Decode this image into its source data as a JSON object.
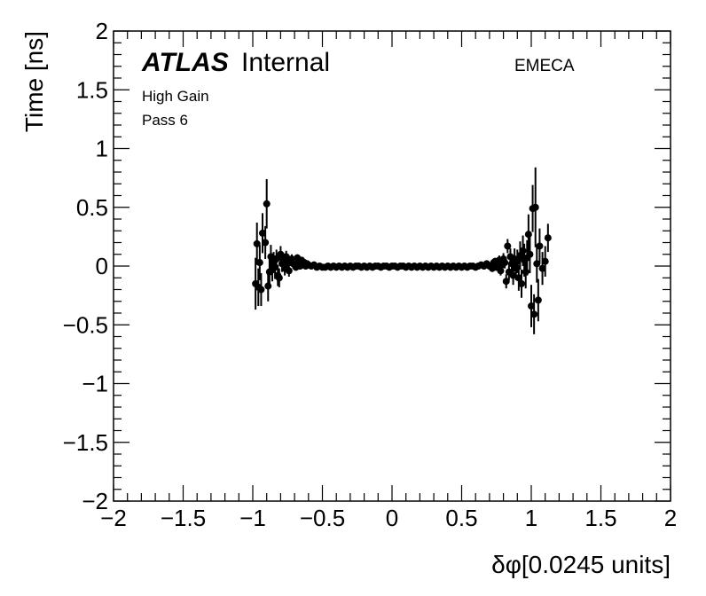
{
  "labels": {
    "atlas": "ATLAS",
    "internal": "Internal",
    "gain": "High Gain",
    "pass": "Pass 6",
    "region": "EMECA"
  },
  "chart_data": {
    "type": "scatter",
    "xlabel": "δφ[0.0245 units]",
    "ylabel": "Time [ns]",
    "xlim": [
      -2,
      2
    ],
    "ylim": [
      -2,
      2
    ],
    "x_ticks": [
      "−2",
      "−1.5",
      "−1",
      "−0.5",
      "0",
      "0.5",
      "1",
      "1.5",
      "2"
    ],
    "y_ticks": [
      "−2",
      "−1.5",
      "−1",
      "−0.5",
      "0",
      "0.5",
      "1",
      "1.5",
      "2"
    ],
    "marker_color": "#000000",
    "series": [
      {
        "points": [
          {
            "x": -0.98,
            "y": -0.15,
            "err": 0.22
          },
          {
            "x": -0.97,
            "y": 0.19,
            "err": 0.18
          },
          {
            "x": -0.96,
            "y": -0.18,
            "err": 0.16
          },
          {
            "x": -0.95,
            "y": 0.03,
            "err": 0.15
          },
          {
            "x": -0.94,
            "y": -0.2,
            "err": 0.14
          },
          {
            "x": -0.93,
            "y": 0.28,
            "err": 0.17
          },
          {
            "x": -0.91,
            "y": 0.2,
            "err": 0.14
          },
          {
            "x": -0.9,
            "y": 0.53,
            "err": 0.21
          },
          {
            "x": -0.89,
            "y": -0.17,
            "err": 0.13
          },
          {
            "x": -0.88,
            "y": -0.05,
            "err": 0.12
          },
          {
            "x": -0.87,
            "y": 0.08,
            "err": 0.1
          },
          {
            "x": -0.86,
            "y": -0.02,
            "err": 0.11
          },
          {
            "x": -0.85,
            "y": 0.03,
            "err": 0.09
          },
          {
            "x": -0.84,
            "y": -0.01,
            "err": 0.1
          },
          {
            "x": -0.83,
            "y": 0.06,
            "err": 0.08
          },
          {
            "x": -0.82,
            "y": -0.08,
            "err": 0.09
          },
          {
            "x": -0.81,
            "y": -0.1,
            "err": 0.08
          },
          {
            "x": -0.8,
            "y": 0.1,
            "err": 0.07
          },
          {
            "x": -0.79,
            "y": 0.02,
            "err": 0.07
          },
          {
            "x": -0.78,
            "y": 0.05,
            "err": 0.06
          },
          {
            "x": -0.77,
            "y": -0.02,
            "err": 0.06
          },
          {
            "x": -0.76,
            "y": 0.08,
            "err": 0.05
          },
          {
            "x": -0.75,
            "y": 0.03,
            "err": 0.05
          },
          {
            "x": -0.74,
            "y": -0.04,
            "err": 0.05
          },
          {
            "x": -0.73,
            "y": 0.04,
            "err": 0.04
          },
          {
            "x": -0.72,
            "y": 0.06,
            "err": 0.04
          },
          {
            "x": -0.71,
            "y": 0.02,
            "err": 0.04
          },
          {
            "x": -0.7,
            "y": 0.01,
            "err": 0.03
          },
          {
            "x": -0.69,
            "y": -0.01,
            "err": 0.03
          },
          {
            "x": -0.68,
            "y": 0.07,
            "err": 0.03
          },
          {
            "x": -0.67,
            "y": 0.04,
            "err": 0.03
          },
          {
            "x": -0.66,
            "y": 0.0,
            "err": 0.03
          },
          {
            "x": -0.65,
            "y": 0.05,
            "err": 0.02
          },
          {
            "x": -0.64,
            "y": 0.01,
            "err": 0.02
          },
          {
            "x": -0.63,
            "y": 0.03,
            "err": 0.02
          },
          {
            "x": -0.62,
            "y": 0.0,
            "err": 0.02
          },
          {
            "x": -0.61,
            "y": 0.02,
            "err": 0.02
          },
          {
            "x": -0.6,
            "y": 0.01,
            "err": 0.02
          },
          {
            "x": -0.58,
            "y": 0.0,
            "err": 0.02
          },
          {
            "x": -0.56,
            "y": 0.01,
            "err": 0.01
          },
          {
            "x": -0.54,
            "y": -0.01,
            "err": 0.01
          },
          {
            "x": -0.52,
            "y": 0.0,
            "err": 0.01
          },
          {
            "x": -0.5,
            "y": -0.01,
            "err": 0.01
          },
          {
            "x": -0.48,
            "y": -0.01,
            "err": 0.01
          },
          {
            "x": -0.46,
            "y": 0.0,
            "err": 0.01
          },
          {
            "x": -0.44,
            "y": -0.01,
            "err": 0.01
          },
          {
            "x": -0.42,
            "y": 0.0,
            "err": 0.01
          },
          {
            "x": -0.4,
            "y": -0.01,
            "err": 0.01
          },
          {
            "x": -0.38,
            "y": 0.0,
            "err": 0.01
          },
          {
            "x": -0.36,
            "y": -0.01,
            "err": 0.01
          },
          {
            "x": -0.34,
            "y": 0.0,
            "err": 0.01
          },
          {
            "x": -0.32,
            "y": -0.01,
            "err": 0.01
          },
          {
            "x": -0.3,
            "y": 0.0,
            "err": 0.01
          },
          {
            "x": -0.28,
            "y": -0.01,
            "err": 0.01
          },
          {
            "x": -0.26,
            "y": 0.0,
            "err": 0.01
          },
          {
            "x": -0.24,
            "y": 0.0,
            "err": 0.01
          },
          {
            "x": -0.22,
            "y": -0.01,
            "err": 0.01
          },
          {
            "x": -0.2,
            "y": 0.0,
            "err": 0.01
          },
          {
            "x": -0.18,
            "y": -0.01,
            "err": 0.01
          },
          {
            "x": -0.16,
            "y": 0.0,
            "err": 0.01
          },
          {
            "x": -0.14,
            "y": -0.01,
            "err": 0.01
          },
          {
            "x": -0.12,
            "y": 0.0,
            "err": 0.01
          },
          {
            "x": -0.1,
            "y": 0.0,
            "err": 0.01
          },
          {
            "x": -0.08,
            "y": -0.01,
            "err": 0.01
          },
          {
            "x": -0.06,
            "y": 0.0,
            "err": 0.01
          },
          {
            "x": -0.04,
            "y": 0.0,
            "err": 0.01
          },
          {
            "x": -0.02,
            "y": -0.01,
            "err": 0.01
          },
          {
            "x": 0.0,
            "y": 0.0,
            "err": 0.01
          },
          {
            "x": 0.02,
            "y": 0.0,
            "err": 0.01
          },
          {
            "x": 0.04,
            "y": -0.01,
            "err": 0.01
          },
          {
            "x": 0.06,
            "y": 0.0,
            "err": 0.01
          },
          {
            "x": 0.08,
            "y": 0.0,
            "err": 0.01
          },
          {
            "x": 0.1,
            "y": -0.01,
            "err": 0.01
          },
          {
            "x": 0.12,
            "y": 0.0,
            "err": 0.01
          },
          {
            "x": 0.14,
            "y": -0.01,
            "err": 0.01
          },
          {
            "x": 0.16,
            "y": 0.0,
            "err": 0.01
          },
          {
            "x": 0.18,
            "y": -0.01,
            "err": 0.01
          },
          {
            "x": 0.2,
            "y": 0.0,
            "err": 0.01
          },
          {
            "x": 0.22,
            "y": -0.01,
            "err": 0.01
          },
          {
            "x": 0.24,
            "y": 0.0,
            "err": 0.01
          },
          {
            "x": 0.26,
            "y": -0.01,
            "err": 0.01
          },
          {
            "x": 0.28,
            "y": 0.0,
            "err": 0.01
          },
          {
            "x": 0.3,
            "y": -0.01,
            "err": 0.01
          },
          {
            "x": 0.32,
            "y": 0.0,
            "err": 0.01
          },
          {
            "x": 0.34,
            "y": -0.01,
            "err": 0.01
          },
          {
            "x": 0.36,
            "y": 0.0,
            "err": 0.01
          },
          {
            "x": 0.38,
            "y": -0.01,
            "err": 0.01
          },
          {
            "x": 0.4,
            "y": 0.0,
            "err": 0.01
          },
          {
            "x": 0.42,
            "y": -0.01,
            "err": 0.01
          },
          {
            "x": 0.44,
            "y": 0.0,
            "err": 0.01
          },
          {
            "x": 0.46,
            "y": -0.01,
            "err": 0.01
          },
          {
            "x": 0.48,
            "y": 0.0,
            "err": 0.01
          },
          {
            "x": 0.5,
            "y": -0.01,
            "err": 0.01
          },
          {
            "x": 0.52,
            "y": 0.0,
            "err": 0.01
          },
          {
            "x": 0.54,
            "y": -0.01,
            "err": 0.01
          },
          {
            "x": 0.56,
            "y": 0.0,
            "err": 0.01
          },
          {
            "x": 0.58,
            "y": 0.0,
            "err": 0.01
          },
          {
            "x": 0.6,
            "y": -0.01,
            "err": 0.01
          },
          {
            "x": 0.62,
            "y": 0.0,
            "err": 0.02
          },
          {
            "x": 0.64,
            "y": 0.01,
            "err": 0.02
          },
          {
            "x": 0.66,
            "y": 0.0,
            "err": 0.02
          },
          {
            "x": 0.68,
            "y": 0.02,
            "err": 0.02
          },
          {
            "x": 0.7,
            "y": 0.0,
            "err": 0.02
          },
          {
            "x": 0.72,
            "y": -0.02,
            "err": 0.03
          },
          {
            "x": 0.73,
            "y": 0.03,
            "err": 0.03
          },
          {
            "x": 0.74,
            "y": 0.04,
            "err": 0.03
          },
          {
            "x": 0.75,
            "y": -0.01,
            "err": 0.03
          },
          {
            "x": 0.76,
            "y": 0.02,
            "err": 0.04
          },
          {
            "x": 0.77,
            "y": 0.05,
            "err": 0.04
          },
          {
            "x": 0.78,
            "y": -0.04,
            "err": 0.04
          },
          {
            "x": 0.79,
            "y": 0.01,
            "err": 0.05
          },
          {
            "x": 0.8,
            "y": 0.06,
            "err": 0.05
          },
          {
            "x": 0.81,
            "y": 0.03,
            "err": 0.05
          },
          {
            "x": 0.82,
            "y": -0.13,
            "err": 0.06
          },
          {
            "x": 0.83,
            "y": 0.17,
            "err": 0.06
          },
          {
            "x": 0.84,
            "y": -0.05,
            "err": 0.07
          },
          {
            "x": 0.85,
            "y": 0.08,
            "err": 0.07
          },
          {
            "x": 0.86,
            "y": 0.02,
            "err": 0.08
          },
          {
            "x": 0.87,
            "y": -0.08,
            "err": 0.08
          },
          {
            "x": 0.88,
            "y": 0.06,
            "err": 0.09
          },
          {
            "x": 0.89,
            "y": -0.02,
            "err": 0.1
          },
          {
            "x": 0.9,
            "y": 0.04,
            "err": 0.1
          },
          {
            "x": 0.91,
            "y": -0.1,
            "err": 0.11
          },
          {
            "x": 0.92,
            "y": 0.09,
            "err": 0.12
          },
          {
            "x": 0.93,
            "y": -0.15,
            "err": 0.12
          },
          {
            "x": 0.94,
            "y": 0.13,
            "err": 0.13
          },
          {
            "x": 0.95,
            "y": 0.05,
            "err": 0.14
          },
          {
            "x": 0.96,
            "y": -0.05,
            "err": 0.14
          },
          {
            "x": 0.97,
            "y": 0.07,
            "err": 0.15
          },
          {
            "x": 0.98,
            "y": 0.27,
            "err": 0.17
          },
          {
            "x": 0.99,
            "y": 0.1,
            "err": 0.16
          },
          {
            "x": 1.0,
            "y": -0.34,
            "err": 0.18
          },
          {
            "x": 1.01,
            "y": 0.49,
            "err": 0.2
          },
          {
            "x": 1.02,
            "y": -0.41,
            "err": 0.17
          },
          {
            "x": 1.03,
            "y": 0.5,
            "err": 0.34
          },
          {
            "x": 1.04,
            "y": 0.02,
            "err": 0.16
          },
          {
            "x": 1.05,
            "y": -0.29,
            "err": 0.18
          },
          {
            "x": 1.06,
            "y": 0.17,
            "err": 0.15
          },
          {
            "x": 1.08,
            "y": -0.02,
            "err": 0.14
          },
          {
            "x": 1.1,
            "y": 0.04,
            "err": 0.13
          },
          {
            "x": 1.12,
            "y": 0.24,
            "err": 0.12
          }
        ]
      }
    ]
  }
}
